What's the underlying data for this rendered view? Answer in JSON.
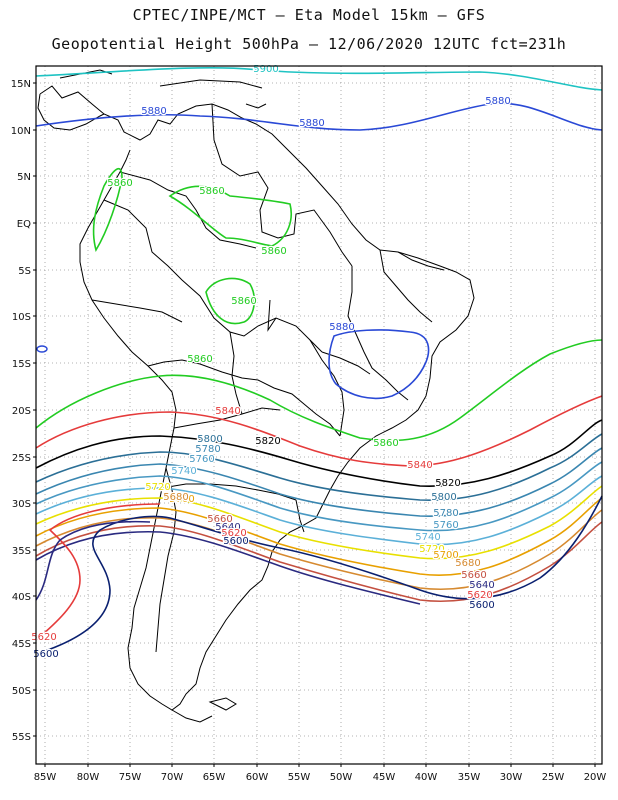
{
  "title_line1": "CPTEC/INPE/MCT –  Eta Model 15km – GFS",
  "title_line2": "Geopotential Height 500hPa – 12/06/2020 12UTC fct=231h",
  "lat_labels": [
    "15N",
    "10N",
    "5N",
    "EQ",
    "5S",
    "10S",
    "15S",
    "20S",
    "25S",
    "30S",
    "35S",
    "40S",
    "45S",
    "50S",
    "55S"
  ],
  "lon_labels": [
    "85W",
    "80W",
    "75W",
    "70W",
    "65W",
    "60W",
    "55W",
    "50W",
    "45W",
    "40W",
    "35W",
    "30W",
    "25W",
    "20W"
  ],
  "contour_colors": {
    "c5900": "#1fc3c3",
    "c5880": "#2a49d6",
    "c5860": "#22cc22",
    "c5840": "#e53b3b",
    "c5820": "#000000",
    "c5800": "#2b6f96",
    "c5780": "#3a86b0",
    "c5760": "#4898c2",
    "c5740": "#5bb0d8",
    "c5720": "#e8e000",
    "c5700": "#e8a000",
    "c5680": "#d68a30",
    "c5660": "#c45040",
    "c5640": "#2a2a80",
    "c5620": "#e53b3b",
    "c5600": "#0a2070"
  },
  "contour_labels": [
    {
      "text": "5900",
      "color": "c5900"
    },
    {
      "text": "5880",
      "color": "c5880"
    },
    {
      "text": "5880",
      "color": "c5880"
    },
    {
      "text": "5880",
      "color": "c5880"
    },
    {
      "text": "5880",
      "color": "c5880"
    },
    {
      "text": "5860",
      "color": "c5860"
    },
    {
      "text": "5860",
      "color": "c5860"
    },
    {
      "text": "5860",
      "color": "c5860"
    },
    {
      "text": "5860",
      "color": "c5860"
    },
    {
      "text": "5860",
      "color": "c5860"
    },
    {
      "text": "5860",
      "color": "c5860"
    },
    {
      "text": "5840",
      "color": "c5840"
    },
    {
      "text": "5840",
      "color": "c5840"
    },
    {
      "text": "5820",
      "color": "c5820"
    },
    {
      "text": "5820",
      "color": "c5820"
    },
    {
      "text": "5800",
      "color": "c5800"
    },
    {
      "text": "5800",
      "color": "c5800"
    },
    {
      "text": "5780",
      "color": "c5780"
    },
    {
      "text": "5780",
      "color": "c5780"
    },
    {
      "text": "5760",
      "color": "c5760"
    },
    {
      "text": "5760",
      "color": "c5760"
    },
    {
      "text": "5740",
      "color": "c5740"
    },
    {
      "text": "5740",
      "color": "c5740"
    },
    {
      "text": "5720",
      "color": "c5720"
    },
    {
      "text": "5720",
      "color": "c5720"
    },
    {
      "text": "5700",
      "color": "c5700"
    },
    {
      "text": "5700",
      "color": "c5700"
    },
    {
      "text": "5680",
      "color": "c5680"
    },
    {
      "text": "5680",
      "color": "c5680"
    },
    {
      "text": "5660",
      "color": "c5660"
    },
    {
      "text": "5660",
      "color": "c5660"
    },
    {
      "text": "5640",
      "color": "c5640"
    },
    {
      "text": "5640",
      "color": "c5640"
    },
    {
      "text": "5620",
      "color": "c5620"
    },
    {
      "text": "5620",
      "color": "c5620"
    },
    {
      "text": "5620",
      "color": "c5620"
    },
    {
      "text": "5600",
      "color": "c5600"
    },
    {
      "text": "5600",
      "color": "c5600"
    },
    {
      "text": "5600",
      "color": "c5600"
    }
  ]
}
